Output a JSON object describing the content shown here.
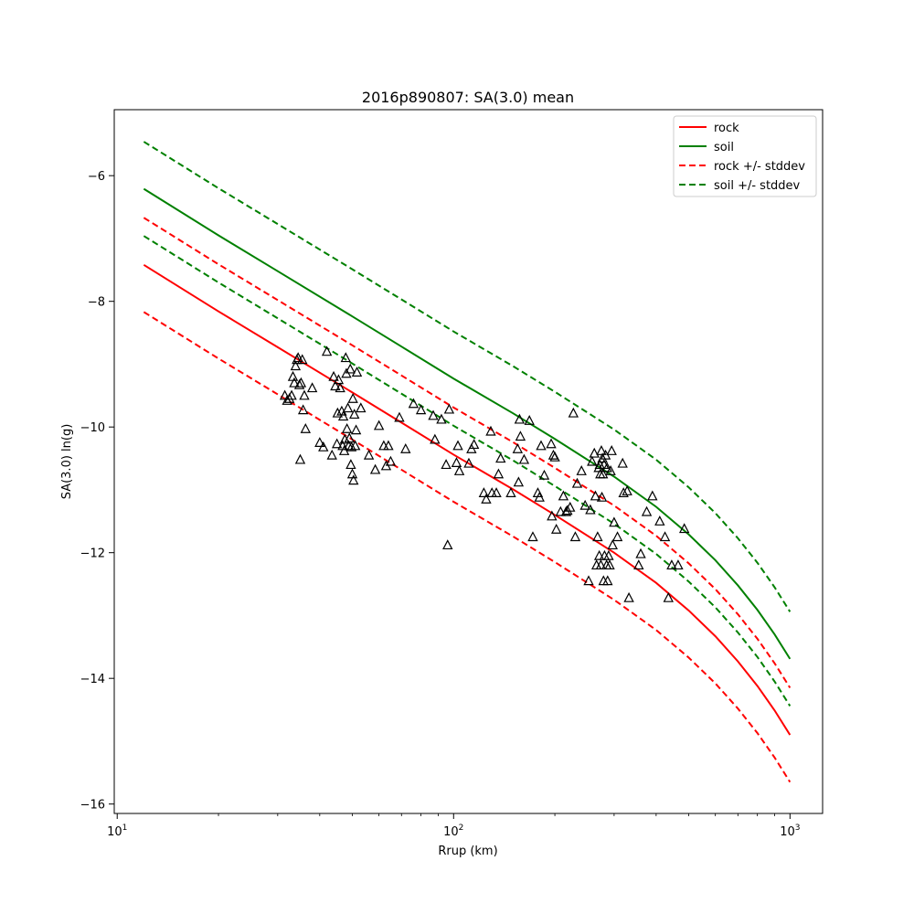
{
  "chart_data": {
    "type": "line",
    "title": "2016p890807: SA(3.0) mean",
    "xlabel": "Rrup (km)",
    "ylabel": "SA(3.0) ln(g)",
    "xscale": "log",
    "xlim": [
      9.8,
      1250
    ],
    "ylim": [
      -16.15,
      -4.95
    ],
    "xticks": [
      10,
      100,
      1000
    ],
    "xtick_labels": [
      "10",
      "10",
      "10"
    ],
    "xtick_exponents": [
      "1",
      "2",
      "3"
    ],
    "yticks": [
      -16,
      -14,
      -12,
      -10,
      -8,
      -6
    ],
    "ytick_labels": [
      "−16",
      "−14",
      "−12",
      "−10",
      "−8",
      "−6"
    ],
    "legend_position": "top-right",
    "legend": [
      "rock",
      "soil",
      "rock +/- stddev",
      "soil +/- stddev"
    ],
    "series": [
      {
        "name": "rock",
        "color": "#ff0000",
        "dash": "solid",
        "x": [
          12,
          20,
          30,
          50,
          70,
          100,
          150,
          200,
          300,
          400,
          500,
          600,
          700,
          800,
          900,
          1000
        ],
        "y": [
          -7.42,
          -8.16,
          -8.73,
          -9.45,
          -9.93,
          -10.44,
          -10.99,
          -11.4,
          -12.0,
          -12.48,
          -12.92,
          -13.33,
          -13.73,
          -14.12,
          -14.51,
          -14.9
        ]
      },
      {
        "name": "soil",
        "color": "#008000",
        "dash": "solid",
        "x": [
          12,
          20,
          30,
          50,
          70,
          100,
          150,
          200,
          300,
          400,
          500,
          600,
          700,
          800,
          900,
          1000
        ],
        "y": [
          -6.21,
          -6.95,
          -7.52,
          -8.24,
          -8.72,
          -9.23,
          -9.78,
          -10.19,
          -10.79,
          -11.27,
          -11.71,
          -12.12,
          -12.52,
          -12.91,
          -13.3,
          -13.69
        ]
      },
      {
        "name": "rock +/- stddev",
        "color": "#ff0000",
        "dash": "dashed",
        "x": [
          12,
          20,
          30,
          50,
          70,
          100,
          150,
          200,
          300,
          400,
          500,
          600,
          700,
          800,
          900,
          1000
        ],
        "y": [
          -6.67,
          -7.41,
          -7.98,
          -8.7,
          -9.18,
          -9.69,
          -10.24,
          -10.65,
          -11.25,
          -11.73,
          -12.17,
          -12.58,
          -12.98,
          -13.37,
          -13.76,
          -14.15
        ]
      },
      {
        "name": "rock +/- stddev (lower)",
        "color": "#ff0000",
        "dash": "dashed",
        "x": [
          12,
          20,
          30,
          50,
          70,
          100,
          150,
          200,
          300,
          400,
          500,
          600,
          700,
          800,
          900,
          1000
        ],
        "y": [
          -8.17,
          -8.91,
          -9.48,
          -10.2,
          -10.68,
          -11.19,
          -11.74,
          -12.15,
          -12.75,
          -13.23,
          -13.67,
          -14.08,
          -14.48,
          -14.87,
          -15.26,
          -15.65
        ]
      },
      {
        "name": "soil +/- stddev",
        "color": "#008000",
        "dash": "dashed",
        "x": [
          12,
          20,
          30,
          50,
          70,
          100,
          150,
          200,
          300,
          400,
          500,
          600,
          700,
          800,
          900,
          1000
        ],
        "y": [
          -5.46,
          -6.2,
          -6.77,
          -7.49,
          -7.97,
          -8.48,
          -9.03,
          -9.44,
          -10.04,
          -10.52,
          -10.96,
          -11.37,
          -11.77,
          -12.16,
          -12.55,
          -12.94
        ]
      },
      {
        "name": "soil +/- stddev (lower)",
        "color": "#008000",
        "dash": "dashed",
        "x": [
          12,
          20,
          30,
          50,
          70,
          100,
          150,
          200,
          300,
          400,
          500,
          600,
          700,
          800,
          900,
          1000
        ],
        "y": [
          -6.96,
          -7.7,
          -8.27,
          -8.99,
          -9.47,
          -9.98,
          -10.53,
          -10.94,
          -11.54,
          -12.02,
          -12.46,
          -12.87,
          -13.27,
          -13.66,
          -14.05,
          -14.44
        ]
      }
    ],
    "observations": {
      "marker": "triangle",
      "points": [
        [
          31.5,
          -9.5
        ],
        [
          32,
          -9.58
        ],
        [
          32.5,
          -9.55
        ],
        [
          33,
          -9.5
        ],
        [
          33.3,
          -9.2
        ],
        [
          33.6,
          -9.3
        ],
        [
          33.9,
          -9.03
        ],
        [
          34.2,
          -8.93
        ],
        [
          34.5,
          -8.9
        ],
        [
          34.8,
          -9.33
        ],
        [
          35,
          -10.52
        ],
        [
          35.2,
          -9.3
        ],
        [
          35.5,
          -8.93
        ],
        [
          35.7,
          -9.73
        ],
        [
          36,
          -9.5
        ],
        [
          36.3,
          -10.03
        ],
        [
          38,
          -9.38
        ],
        [
          40,
          -10.25
        ],
        [
          41,
          -10.32
        ],
        [
          42,
          -8.8
        ],
        [
          43.5,
          -10.45
        ],
        [
          44,
          -9.2
        ],
        [
          44.5,
          -9.35
        ],
        [
          45,
          -10.27
        ],
        [
          45.2,
          -9.78
        ],
        [
          45.5,
          -9.25
        ],
        [
          46,
          -9.38
        ],
        [
          46.5,
          -9.75
        ],
        [
          46.8,
          -10.3
        ],
        [
          47,
          -9.83
        ],
        [
          47.3,
          -10.38
        ],
        [
          47.5,
          -10.2
        ],
        [
          47.8,
          -8.9
        ],
        [
          48,
          -9.15
        ],
        [
          48.2,
          -10.03
        ],
        [
          48.5,
          -9.7
        ],
        [
          48.8,
          -10.3
        ],
        [
          49,
          -10.18
        ],
        [
          49.3,
          -9.08
        ],
        [
          49.5,
          -10.6
        ],
        [
          49.7,
          -10.32
        ],
        [
          50,
          -10.75
        ],
        [
          50.2,
          -9.55
        ],
        [
          50.4,
          -10.85
        ],
        [
          50.7,
          -9.8
        ],
        [
          51,
          -10.3
        ],
        [
          51.3,
          -10.05
        ],
        [
          51.6,
          -9.13
        ],
        [
          53,
          -9.7
        ],
        [
          56,
          -10.45
        ],
        [
          58.5,
          -10.68
        ],
        [
          60,
          -9.98
        ],
        [
          62,
          -10.3
        ],
        [
          63,
          -10.62
        ],
        [
          64,
          -10.3
        ],
        [
          65,
          -10.55
        ],
        [
          69,
          -9.85
        ],
        [
          72,
          -10.35
        ],
        [
          76,
          -9.63
        ],
        [
          80,
          -9.73
        ],
        [
          87,
          -9.82
        ],
        [
          88,
          -10.2
        ],
        [
          92,
          -9.88
        ],
        [
          95,
          -10.6
        ],
        [
          96,
          -11.88
        ],
        [
          97,
          -9.72
        ],
        [
          102,
          -10.57
        ],
        [
          103,
          -10.3
        ],
        [
          104,
          -10.7
        ],
        [
          111,
          -10.58
        ],
        [
          113,
          -10.35
        ],
        [
          115,
          -10.28
        ],
        [
          123,
          -11.05
        ],
        [
          125,
          -11.15
        ],
        [
          129,
          -10.07
        ],
        [
          130,
          -11.05
        ],
        [
          134,
          -11.05
        ],
        [
          136,
          -10.75
        ],
        [
          138,
          -10.5
        ],
        [
          148,
          -11.05
        ],
        [
          155,
          -10.35
        ],
        [
          156,
          -10.88
        ],
        [
          157,
          -9.88
        ],
        [
          158,
          -10.15
        ],
        [
          162,
          -10.52
        ],
        [
          168,
          -9.9
        ],
        [
          172,
          -11.75
        ],
        [
          178,
          -11.05
        ],
        [
          180,
          -11.12
        ],
        [
          182,
          -10.3
        ],
        [
          186,
          -10.77
        ],
        [
          195,
          -10.27
        ],
        [
          196,
          -11.42
        ],
        [
          198,
          -10.45
        ],
        [
          200,
          -10.48
        ],
        [
          202,
          -11.63
        ],
        [
          208,
          -11.35
        ],
        [
          212,
          -11.1
        ],
        [
          216,
          -11.35
        ],
        [
          218,
          -11.33
        ],
        [
          222,
          -11.28
        ],
        [
          227,
          -9.78
        ],
        [
          230,
          -11.75
        ],
        [
          233,
          -10.9
        ],
        [
          240,
          -10.7
        ],
        [
          246,
          -11.25
        ],
        [
          252,
          -12.45
        ],
        [
          255,
          -11.32
        ],
        [
          258,
          -10.55
        ],
        [
          262,
          -10.42
        ],
        [
          264,
          -11.1
        ],
        [
          266,
          -12.2
        ],
        [
          268,
          -11.75
        ],
        [
          270,
          -10.65
        ],
        [
          271,
          -12.05
        ],
        [
          272,
          -10.6
        ],
        [
          273,
          -10.75
        ],
        [
          274,
          -12.2
        ],
        [
          275,
          -10.38
        ],
        [
          276,
          -11.12
        ],
        [
          277,
          -10.5
        ],
        [
          278,
          -10.75
        ],
        [
          279,
          -12.45
        ],
        [
          280,
          -10.6
        ],
        [
          281,
          -12.05
        ],
        [
          283,
          -10.45
        ],
        [
          285,
          -12.2
        ],
        [
          286,
          -10.65
        ],
        [
          287,
          -12.45
        ],
        [
          289,
          -12.05
        ],
        [
          291,
          -12.2
        ],
        [
          293,
          -10.7
        ],
        [
          295,
          -10.38
        ],
        [
          297,
          -11.88
        ],
        [
          300,
          -11.52
        ],
        [
          307,
          -11.75
        ],
        [
          318,
          -10.58
        ],
        [
          320,
          -11.05
        ],
        [
          328,
          -11.02
        ],
        [
          332,
          -12.72
        ],
        [
          355,
          -12.2
        ],
        [
          360,
          -12.02
        ],
        [
          375,
          -11.35
        ],
        [
          390,
          -11.1
        ],
        [
          410,
          -11.5
        ],
        [
          425,
          -11.75
        ],
        [
          435,
          -12.72
        ],
        [
          445,
          -12.2
        ],
        [
          465,
          -12.2
        ],
        [
          485,
          -11.62
        ]
      ]
    }
  }
}
